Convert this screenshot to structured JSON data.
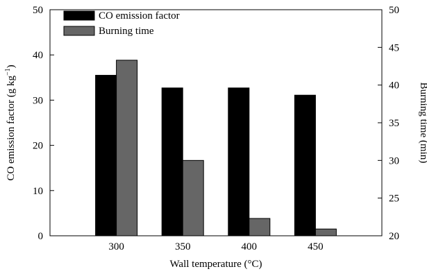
{
  "chart_data": {
    "type": "bar",
    "categories": [
      "300",
      "350",
      "400",
      "450"
    ],
    "xlabel": "Wall temperature (°C)",
    "ylabel": "CO emission factor (g kg",
    "ylabel_sup": "−1",
    "ylabel_close": ")",
    "y2label": "Burning time (min)",
    "ylim": [
      0,
      50
    ],
    "y2lim": [
      20,
      50
    ],
    "yticks": [
      0,
      10,
      20,
      30,
      40,
      50
    ],
    "y2ticks": [
      20,
      25,
      30,
      35,
      40,
      45,
      50
    ],
    "grid": false,
    "legend_position": "top-left",
    "series": [
      {
        "name": "CO emission factor",
        "axis": "left",
        "color": "#000000",
        "values": [
          35.5,
          32.7,
          32.7,
          31.1
        ]
      },
      {
        "name": "Burning time",
        "axis": "right",
        "color": "#666666",
        "values": [
          43.3,
          30.0,
          22.3,
          20.9
        ]
      }
    ]
  }
}
